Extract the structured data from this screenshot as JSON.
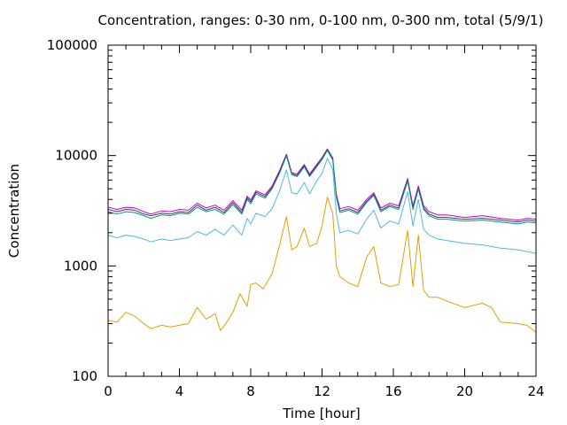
{
  "chart_data": {
    "type": "line",
    "title": "Concentration, ranges: 0-30 nm, 0-100 nm, 0-300 nm, total (5/9/1)",
    "xlabel": "Time [hour]",
    "ylabel": "Concentration",
    "xlim": [
      0,
      24
    ],
    "ylim": [
      100,
      100000
    ],
    "yscale": "log",
    "grid": false,
    "legend": "none",
    "x_ticks": [
      {
        "value": 0,
        "label": "0"
      },
      {
        "value": 4,
        "label": "4"
      },
      {
        "value": 8,
        "label": "8"
      },
      {
        "value": 12,
        "label": "12"
      },
      {
        "value": 16,
        "label": "16"
      },
      {
        "value": 20,
        "label": "20"
      },
      {
        "value": 24,
        "label": "24"
      }
    ],
    "y_ticks": [
      {
        "value": 100,
        "label": "100"
      },
      {
        "value": 1000,
        "label": "1000"
      },
      {
        "value": 10000,
        "label": "10000"
      },
      {
        "value": 100000,
        "label": "100000"
      }
    ],
    "series": [
      {
        "color": "#cc00cc",
        "x": [
          0,
          0.5,
          1,
          1.5,
          2,
          2.4,
          3,
          3.5,
          4,
          4.5,
          5,
          5.5,
          6,
          6.5,
          7,
          7.5,
          7.8,
          8,
          8.3,
          8.8,
          9.2,
          9.6,
          10,
          10.3,
          10.6,
          11,
          11.3,
          11.7,
          12,
          12.3,
          12.6,
          12.8,
          13,
          13.5,
          14,
          14.5,
          14.9,
          15.3,
          15.8,
          16.3,
          16.8,
          17.1,
          17.4,
          17.7,
          18,
          18.5,
          19,
          20,
          21,
          22,
          23,
          23.5,
          24
        ],
        "values": [
          3400,
          3250,
          3400,
          3350,
          3100,
          2950,
          3150,
          3100,
          3250,
          3200,
          3700,
          3350,
          3550,
          3200,
          3900,
          3200,
          4300,
          3950,
          4800,
          4400,
          5300,
          7200,
          10300,
          7000,
          6800,
          8300,
          6800,
          8300,
          9600,
          11500,
          9500,
          4500,
          3300,
          3450,
          3200,
          4000,
          4600,
          3350,
          3700,
          3500,
          6200,
          3500,
          5300,
          3500,
          3100,
          2900,
          2900,
          2750,
          2850,
          2700,
          2600,
          2700,
          2650
        ]
      },
      {
        "color": "#3a3a7a",
        "x": [
          0,
          0.5,
          1,
          1.5,
          2,
          2.4,
          3,
          3.5,
          4,
          4.5,
          5,
          5.5,
          6,
          6.5,
          7,
          7.5,
          7.8,
          8,
          8.3,
          8.8,
          9.2,
          9.6,
          10,
          10.3,
          10.6,
          11,
          11.3,
          11.7,
          12,
          12.3,
          12.6,
          12.8,
          13,
          13.5,
          14,
          14.5,
          14.9,
          15.3,
          15.8,
          16.3,
          16.8,
          17.1,
          17.4,
          17.7,
          18,
          18.5,
          19,
          20,
          21,
          22,
          23,
          23.5,
          24
        ],
        "values": [
          3250,
          3100,
          3250,
          3200,
          2950,
          2850,
          3000,
          2950,
          3100,
          3050,
          3550,
          3200,
          3400,
          3050,
          3750,
          3050,
          4150,
          3800,
          4650,
          4250,
          5150,
          7000,
          10100,
          6850,
          6600,
          8100,
          6600,
          8100,
          9400,
          11300,
          9300,
          4300,
          3150,
          3300,
          3050,
          3850,
          4450,
          3200,
          3550,
          3350,
          6000,
          3350,
          5100,
          3350,
          2950,
          2750,
          2750,
          2650,
          2700,
          2600,
          2500,
          2600,
          2550
        ]
      },
      {
        "color": "#009e73",
        "x": [
          0,
          0.5,
          1,
          1.5,
          2,
          2.4,
          3,
          3.5,
          4,
          4.5,
          5,
          5.5,
          6,
          6.5,
          7,
          7.5,
          7.8,
          8,
          8.3,
          8.8,
          9.2,
          9.6,
          10,
          10.3,
          10.6,
          11,
          11.3,
          11.7,
          12,
          12.3,
          12.6,
          12.8,
          13,
          13.5,
          14,
          14.5,
          14.9,
          15.3,
          15.8,
          16.3,
          16.8,
          17.1,
          17.4,
          17.7,
          18,
          18.5,
          19,
          20,
          21,
          22,
          23,
          23.5,
          24
        ],
        "values": [
          3100,
          2950,
          3100,
          3050,
          2850,
          2700,
          2900,
          2850,
          3000,
          2950,
          3400,
          3100,
          3250,
          2950,
          3600,
          2950,
          4000,
          3650,
          4500,
          4100,
          5000,
          6800,
          9900,
          6700,
          6450,
          7900,
          6450,
          7900,
          9200,
          11100,
          9100,
          4200,
          3050,
          3200,
          2950,
          3750,
          4350,
          3100,
          3450,
          3250,
          5850,
          3250,
          4950,
          3250,
          2850,
          2650,
          2650,
          2550,
          2600,
          2500,
          2400,
          2500,
          2450
        ]
      },
      {
        "color": "#56b4e9",
        "x": [
          0,
          0.5,
          1,
          1.5,
          2,
          2.4,
          3,
          3.5,
          4,
          4.5,
          5,
          5.5,
          6,
          6.5,
          7,
          7.5,
          7.8,
          8,
          8.3,
          8.8,
          9.2,
          9.6,
          10,
          10.3,
          10.6,
          11,
          11.3,
          11.7,
          12,
          12.3,
          12.6,
          12.8,
          13,
          13.5,
          14,
          14.5,
          14.9,
          15.3,
          15.8,
          16.3,
          16.8,
          17.1,
          17.4,
          17.7,
          18,
          18.5,
          19,
          20,
          21,
          22,
          23,
          23.5,
          24
        ],
        "values": [
          1900,
          1800,
          1900,
          1850,
          1750,
          1650,
          1750,
          1700,
          1750,
          1800,
          2050,
          1900,
          2150,
          1900,
          2350,
          1900,
          2700,
          2400,
          3000,
          2800,
          3300,
          4700,
          7400,
          4600,
          4500,
          5700,
          4500,
          5900,
          6900,
          9400,
          7500,
          3000,
          2000,
          2100,
          1950,
          2650,
          3200,
          2200,
          2550,
          2400,
          4700,
          2300,
          4000,
          2150,
          1900,
          1750,
          1700,
          1600,
          1550,
          1450,
          1400,
          1350,
          1300
        ]
      },
      {
        "color": "#e69f00",
        "x": [
          0,
          0.5,
          1,
          1.5,
          2,
          2.4,
          3,
          3.5,
          4,
          4.5,
          5,
          5.5,
          6,
          6.3,
          6.6,
          7,
          7.4,
          7.8,
          8,
          8.3,
          8.7,
          9.2,
          9.6,
          10,
          10.3,
          10.6,
          11,
          11.3,
          11.7,
          12,
          12.3,
          12.6,
          12.8,
          13,
          13.5,
          14,
          14.5,
          14.9,
          15.3,
          15.8,
          16.3,
          16.8,
          17.1,
          17.4,
          17.7,
          18,
          18.5,
          19,
          20,
          21,
          21.5,
          22,
          23,
          23.5,
          24
        ],
        "values": [
          320,
          310,
          380,
          350,
          300,
          270,
          290,
          280,
          290,
          300,
          420,
          330,
          370,
          260,
          300,
          380,
          560,
          430,
          680,
          700,
          620,
          850,
          1500,
          2800,
          1400,
          1500,
          2200,
          1500,
          1600,
          2300,
          4200,
          3000,
          1000,
          800,
          700,
          650,
          1200,
          1500,
          700,
          650,
          680,
          2100,
          650,
          1900,
          600,
          520,
          520,
          480,
          420,
          460,
          420,
          310,
          300,
          290,
          250
        ]
      }
    ]
  }
}
